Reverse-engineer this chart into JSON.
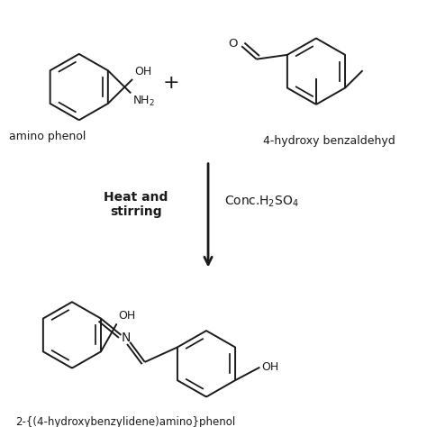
{
  "bg_color": "#ffffff",
  "line_color": "#1a1a1a",
  "fig_width": 4.74,
  "fig_height": 4.74,
  "dpi": 100,
  "reagent1_label": "amino phenol",
  "reagent2_label": "4-hydroxy benzaldehyd",
  "product_label": "2-{(4-hydroxybenzylidene)amino}phenol",
  "condition1": "Heat and\nstirring",
  "condition2": "Conc.H$_2$SO$_4$",
  "font_size_label": 9,
  "font_size_condition": 10,
  "lw": 1.4
}
